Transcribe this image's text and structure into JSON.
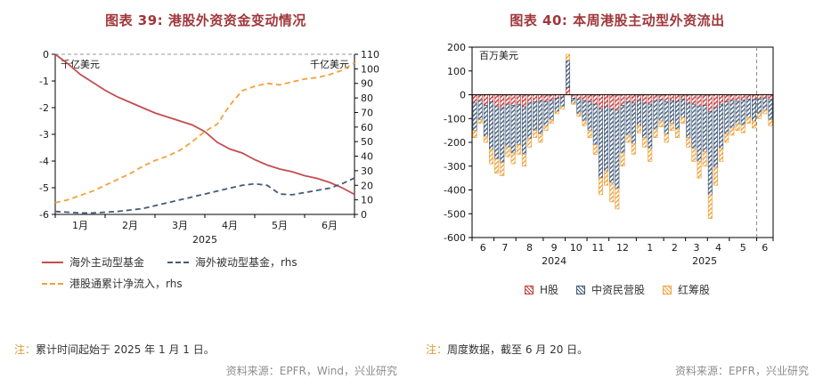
{
  "page": {
    "background": "#ffffff"
  },
  "colors": {
    "title": "#A0373B",
    "note_label": "#E09A36",
    "note_text": "#333333",
    "source_text": "#8C8C8C",
    "axis_text": "#1a1a1a",
    "active_fund_line": "#C24E52",
    "passive_fund_line": "#435A79",
    "southbound_line": "#F0A23C"
  },
  "fig39": {
    "note_label": "注：",
    "note_text": "累计时间起始于 2025 年 1 月 1 日。",
    "source": "资料来源：EPFR，Wind，兴业研究"
  },
  "fig40": {
    "note_label": "注：",
    "note_text": "周度数据，截至 6 月 20 日。",
    "source": "资料来源：EPFR，兴业研究"
  },
  "chart_data": [
    {
      "id": "fig39",
      "type": "line",
      "title": "图表 39: 港股外资资金变动情况",
      "left_axis": {
        "label": "千亿美元",
        "max": 0,
        "min": -6,
        "ticks": [
          0,
          -1,
          -2,
          -3,
          -4,
          -5,
          -6
        ]
      },
      "right_axis": {
        "label": "千亿美元",
        "max": 110,
        "min": 0,
        "tick_step": 10
      },
      "x_ticks": [
        "1月",
        "2月",
        "3月",
        "4月",
        "5月",
        "6月"
      ],
      "x_year": "2025",
      "zero_line_style": "dashed",
      "legend_position": "bottom",
      "series": [
        {
          "name": "海外主动型基金",
          "axis": "left",
          "style": "solid",
          "color": "#C24E52",
          "values": [
            0,
            -0.35,
            -0.75,
            -1.05,
            -1.35,
            -1.6,
            -1.8,
            -2.0,
            -2.2,
            -2.35,
            -2.5,
            -2.65,
            -2.9,
            -3.3,
            -3.55,
            -3.7,
            -3.95,
            -4.15,
            -4.3,
            -4.4,
            -4.55,
            -4.65,
            -4.8,
            -5.0,
            -5.25
          ]
        },
        {
          "name": "海外被动型基金，rhs",
          "axis": "right",
          "style": "dashed",
          "color": "#435A79",
          "values": [
            2,
            1.5,
            1,
            1,
            1.5,
            2,
            3,
            4,
            6,
            8,
            10,
            12,
            14,
            16,
            18,
            20,
            21,
            20,
            14,
            13.5,
            15,
            16.5,
            18,
            21,
            25
          ]
        },
        {
          "name": "港股通累计净流入，rhs",
          "axis": "right",
          "style": "dashed",
          "color": "#F0A23C",
          "values": [
            8,
            10,
            13,
            16,
            20,
            24,
            28,
            33,
            37,
            40,
            44,
            50,
            57,
            62,
            75,
            85,
            88,
            90,
            89,
            91,
            93,
            94,
            96,
            99,
            104
          ]
        }
      ]
    },
    {
      "id": "fig40",
      "type": "bar",
      "stacked": true,
      "title": "图表 40: 本周港股主动型外资流出",
      "y_axis": {
        "label": "百万美元",
        "max": 200,
        "min": -600,
        "tick_step": 100
      },
      "month_labels": [
        "6",
        "7",
        "8",
        "9",
        "10",
        "11",
        "12",
        "1",
        "2",
        "3",
        "4",
        "5",
        "6"
      ],
      "bars_per_month": [
        4,
        4,
        5,
        4,
        4,
        4,
        5,
        5,
        4,
        4,
        4,
        5,
        3
      ],
      "years": [
        {
          "label": "2024",
          "months": 7
        },
        {
          "label": "2025",
          "months": 6
        }
      ],
      "dash_line_before_last_month": true,
      "legend_position": "bottom",
      "series": [
        {
          "name": "H股",
          "color": "#C23B3B"
        },
        {
          "name": "中资民营股",
          "color": "#435A79"
        },
        {
          "name": "红筹股",
          "color": "#F0A23C"
        }
      ],
      "bars": [
        [
          -35,
          -115,
          -30
        ],
        [
          -25,
          -80,
          -15
        ],
        [
          -45,
          -130,
          -25
        ],
        [
          -30,
          -200,
          -60
        ],
        [
          -50,
          -220,
          -60
        ],
        [
          -55,
          -230,
          -55
        ],
        [
          -40,
          -180,
          -40
        ],
        [
          -45,
          -200,
          -45
        ],
        [
          -40,
          -170,
          -40
        ],
        [
          -50,
          -200,
          -50
        ],
        [
          -35,
          -150,
          -35
        ],
        [
          -30,
          -120,
          -30
        ],
        [
          -25,
          -140,
          -35
        ],
        [
          -30,
          -100,
          -20
        ],
        [
          -25,
          -80,
          -15
        ],
        [
          -15,
          -55,
          -10
        ],
        [
          -10,
          -40,
          -10
        ],
        [
          30,
          115,
          25
        ],
        [
          -15,
          -20,
          -5
        ],
        [
          -20,
          -60,
          -10
        ],
        [
          -25,
          -85,
          -20
        ],
        [
          -30,
          -120,
          -30
        ],
        [
          -40,
          -170,
          -40
        ],
        [
          -60,
          -290,
          -70
        ],
        [
          -50,
          -270,
          -60
        ],
        [
          -60,
          -310,
          -80
        ],
        [
          -65,
          -330,
          -85
        ],
        [
          -45,
          -200,
          -55
        ],
        [
          -30,
          -140,
          -30
        ],
        [
          -35,
          -170,
          -45
        ],
        [
          -25,
          -105,
          -30
        ],
        [
          -35,
          -145,
          -40
        ],
        [
          -40,
          -185,
          -55
        ],
        [
          -25,
          -120,
          -35
        ],
        [
          -20,
          -90,
          -25
        ],
        [
          -30,
          -135,
          -35
        ],
        [
          -25,
          -95,
          -30
        ],
        [
          -28,
          -117,
          -35
        ],
        [
          -18,
          -77,
          -25
        ],
        [
          -35,
          -145,
          -40
        ],
        [
          -40,
          -185,
          -55
        ],
        [
          -50,
          -230,
          -70
        ],
        [
          -45,
          -195,
          -60
        ],
        [
          -70,
          -350,
          -100
        ],
        [
          -55,
          -250,
          -75
        ],
        [
          -40,
          -185,
          -55
        ],
        [
          -30,
          -135,
          -35
        ],
        [
          -25,
          -115,
          -30
        ],
        [
          -28,
          -95,
          -27
        ],
        [
          -22,
          -105,
          -33
        ],
        [
          -18,
          -77,
          -25
        ],
        [
          -20,
          -90,
          -30
        ],
        [
          -18,
          -62,
          -20
        ],
        [
          -14,
          -50,
          -16
        ],
        [
          -20,
          -85,
          -25
        ]
      ]
    }
  ]
}
